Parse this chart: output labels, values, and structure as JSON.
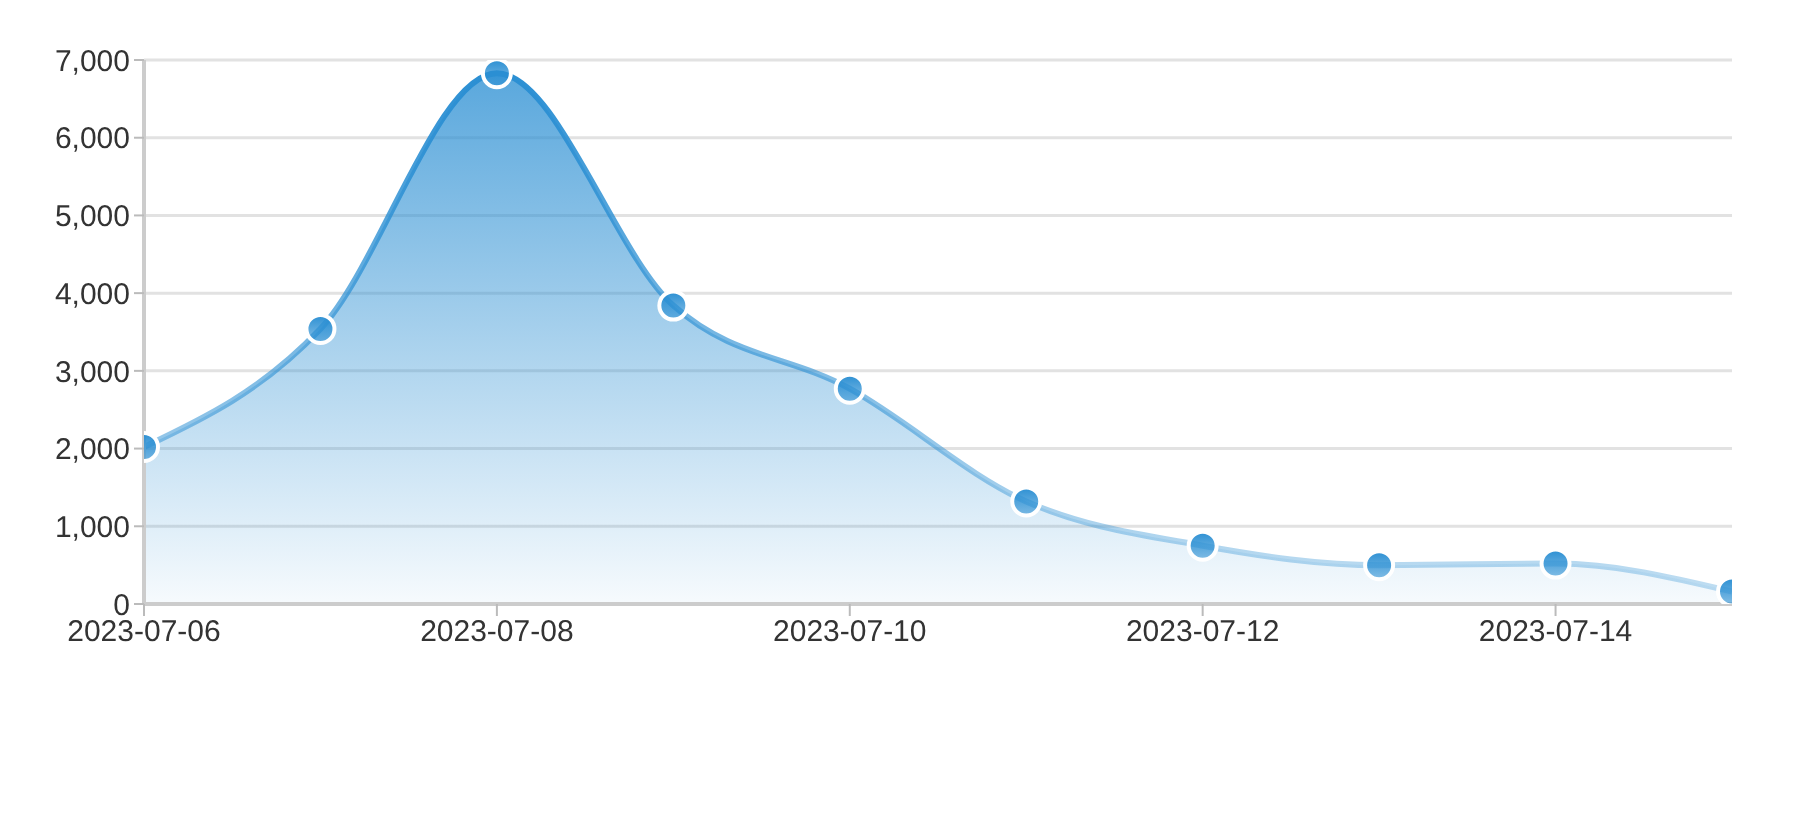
{
  "chart_data": {
    "type": "area",
    "x": [
      "2023-07-06",
      "2023-07-07",
      "2023-07-08",
      "2023-07-09",
      "2023-07-10",
      "2023-07-11",
      "2023-07-12",
      "2023-07-13",
      "2023-07-14",
      "2023-07-15"
    ],
    "values": [
      2020,
      3540,
      6830,
      3840,
      2770,
      1320,
      750,
      500,
      520,
      160
    ],
    "color": "#2b8fd3",
    "xlim": [
      "2023-07-06",
      "2023-07-15"
    ],
    "xticks": [
      "2023-07-06",
      "2023-07-08",
      "2023-07-10",
      "2023-07-12",
      "2023-07-14"
    ],
    "ylim": [
      0,
      7000
    ],
    "yticks": [
      0,
      {
        "value": 1000,
        "label": "1,000"
      },
      {
        "value": 2000,
        "label": "2,000"
      },
      {
        "value": 3000,
        "label": "3,000"
      },
      {
        "value": 4000,
        "label": "4,000"
      },
      {
        "value": 5000,
        "label": "5,000"
      },
      {
        "value": 6000,
        "label": "6,000"
      },
      {
        "value": 7000,
        "label": "7,000"
      }
    ],
    "grid": "y",
    "marker": "circle",
    "line_style": "solid"
  }
}
